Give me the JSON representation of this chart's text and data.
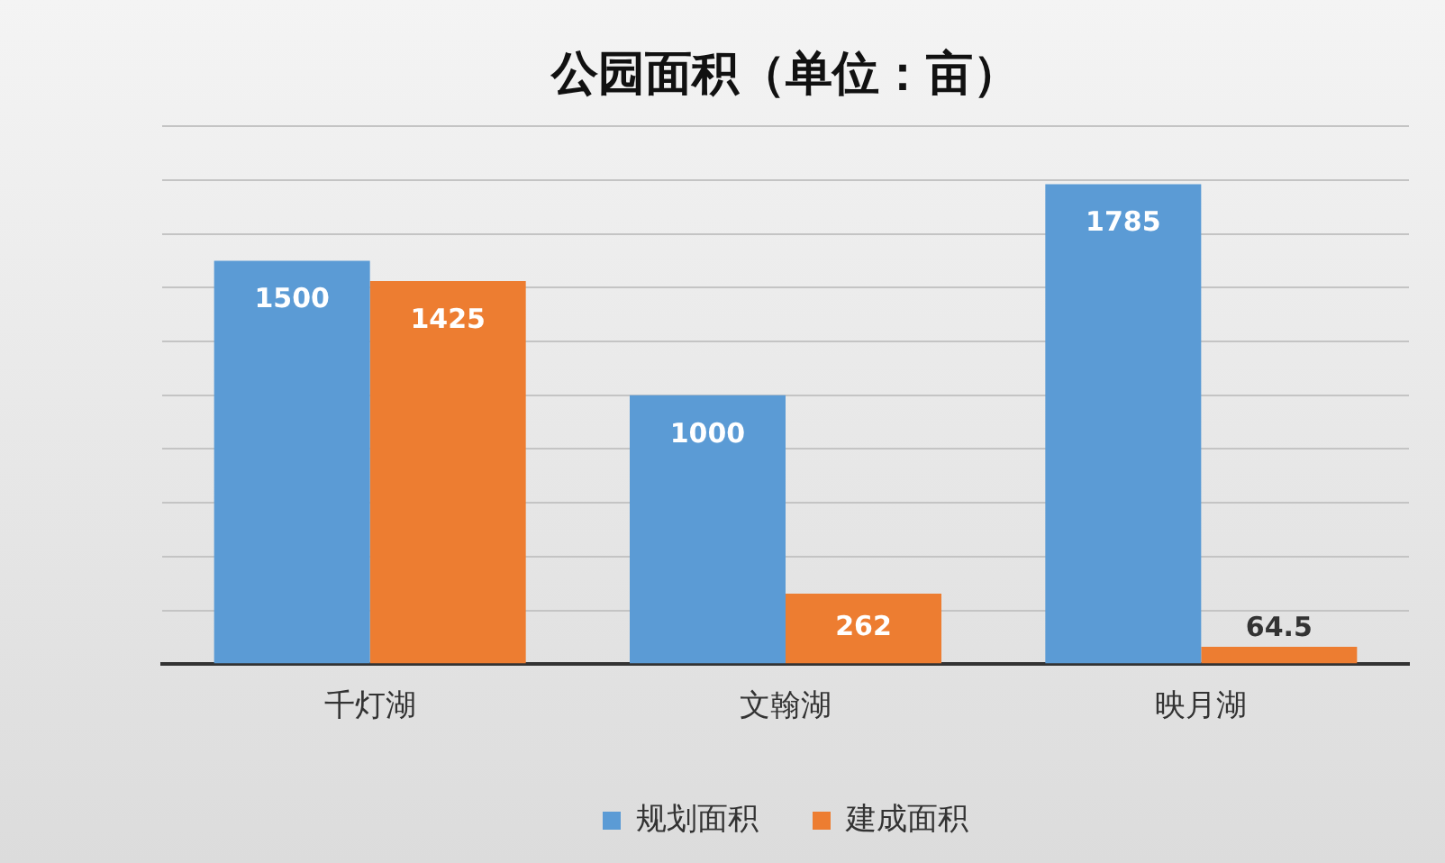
{
  "chart_data": {
    "type": "bar",
    "title": "公园面积（单位：亩）",
    "categories": [
      "千灯湖",
      "文翰湖",
      "映月湖"
    ],
    "series": [
      {
        "name": "规划面积",
        "color": "#5b9bd5",
        "values": [
          1500,
          1000,
          1785
        ]
      },
      {
        "name": "建成面积",
        "color": "#ed7d31",
        "values": [
          1425,
          262,
          64.5
        ]
      }
    ],
    "ylim": [
      0,
      2000
    ],
    "yticks": [
      {
        "value": 0,
        "label": null
      },
      {
        "value": 200,
        "label": null
      },
      {
        "value": 400,
        "label": null
      },
      {
        "value": 600,
        "label": null
      },
      {
        "value": 800,
        "label": null
      },
      {
        "value": 1000,
        "label": null
      },
      {
        "value": 1200,
        "label": null
      },
      {
        "value": 1400,
        "label": null
      },
      {
        "value": 1600,
        "label": null
      },
      {
        "value": 1800,
        "label": null
      },
      {
        "value": 2000,
        "label": null
      }
    ],
    "tick_labels": "x",
    "grid": "y",
    "legend": "bottom",
    "data_labels": true
  }
}
